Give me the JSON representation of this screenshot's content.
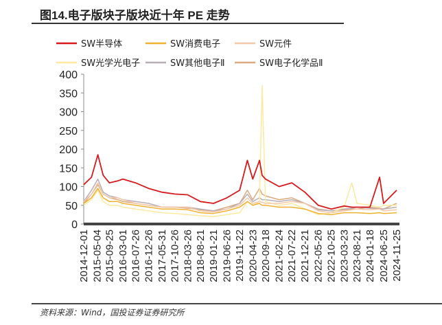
{
  "title": "图14.电子版块子版块近十年 PE 走势",
  "source": "资料来源：Wind，国投证券证券研究所",
  "chart_data": {
    "type": "line",
    "title": "图14.电子版块子版块近十年 PE 走势",
    "xlabel": "",
    "ylabel": "",
    "ylim": [
      0,
      400
    ],
    "yticks": [
      0,
      50,
      100,
      150,
      200,
      250,
      300,
      350,
      400
    ],
    "xticks": [
      "2014-12-01",
      "2015-05-04",
      "2015-09-25",
      "2016-03-01",
      "2016-07-26",
      "2016-12-26",
      "2017-05-31",
      "2017-10-26",
      "2018-03-26",
      "2018-08-21",
      "2019-01-21",
      "2019-06-26",
      "2019-11-22",
      "2020-04-23",
      "2020-09-18",
      "2021-02-24",
      "2021-07-22",
      "2021-12-21",
      "2022-05-26",
      "2022-10-25",
      "2023-03-23",
      "2023-08-21",
      "2024-01-18",
      "2024-06-25",
      "2024-11-25"
    ],
    "grid": false,
    "legend_placement": "top",
    "x": [
      "2014-12-01",
      "2015-03-01",
      "2015-05-15",
      "2015-07-15",
      "2015-09-25",
      "2016-01-01",
      "2016-03-01",
      "2016-07-26",
      "2016-12-26",
      "2017-05-31",
      "2017-10-26",
      "2018-03-26",
      "2018-08-21",
      "2019-01-21",
      "2019-06-26",
      "2019-11-22",
      "2020-02-20",
      "2020-04-23",
      "2020-07-10",
      "2020-08-10",
      "2020-09-18",
      "2021-02-24",
      "2021-07-22",
      "2021-12-21",
      "2022-05-26",
      "2022-10-25",
      "2023-03-23",
      "2023-06-20",
      "2023-08-21",
      "2024-01-18",
      "2024-05-10",
      "2024-06-25",
      "2024-11-25"
    ],
    "series": [
      {
        "name": "SW半导体",
        "color": "#d7191c",
        "values": [
          105,
          125,
          185,
          130,
          110,
          115,
          120,
          110,
          95,
          85,
          80,
          78,
          60,
          55,
          70,
          90,
          170,
          120,
          170,
          130,
          120,
          100,
          110,
          85,
          50,
          40,
          48,
          45,
          45,
          45,
          125,
          55,
          90
        ]
      },
      {
        "name": "SW消费电子",
        "color": "#f0b030",
        "values": [
          55,
          70,
          95,
          70,
          60,
          60,
          55,
          50,
          45,
          40,
          40,
          38,
          30,
          28,
          35,
          45,
          60,
          50,
          55,
          50,
          50,
          45,
          45,
          40,
          28,
          25,
          30,
          30,
          30,
          28,
          30,
          28,
          30
        ]
      },
      {
        "name": "SW元件",
        "color": "#f5c8a8",
        "values": [
          60,
          80,
          110,
          80,
          70,
          70,
          65,
          55,
          50,
          45,
          45,
          45,
          35,
          32,
          40,
          50,
          70,
          55,
          60,
          58,
          55,
          55,
          60,
          55,
          35,
          30,
          35,
          38,
          40,
          38,
          40,
          35,
          38
        ]
      },
      {
        "name": "SW光学光电子",
        "color": "#fde9a0",
        "values": [
          50,
          65,
          90,
          60,
          50,
          50,
          45,
          40,
          35,
          30,
          28,
          25,
          22,
          20,
          25,
          30,
          60,
          50,
          60,
          370,
          60,
          50,
          55,
          40,
          25,
          30,
          45,
          110,
          55,
          50,
          45,
          50,
          50
        ]
      },
      {
        "name": "SW其他电子Ⅱ",
        "color": "#b8aeb6",
        "values": [
          60,
          90,
          120,
          85,
          75,
          70,
          65,
          60,
          55,
          45,
          45,
          45,
          40,
          35,
          40,
          55,
          80,
          60,
          70,
          65,
          65,
          60,
          65,
          55,
          38,
          35,
          40,
          42,
          45,
          42,
          40,
          40,
          45
        ]
      },
      {
        "name": "SW电子化学品Ⅱ",
        "color": "#dbaa80",
        "values": [
          55,
          80,
          105,
          80,
          70,
          65,
          60,
          55,
          50,
          45,
          45,
          42,
          38,
          35,
          45,
          55,
          90,
          65,
          95,
          80,
          75,
          65,
          70,
          55,
          40,
          35,
          38,
          40,
          40,
          45,
          42,
          40,
          55
        ]
      }
    ]
  }
}
